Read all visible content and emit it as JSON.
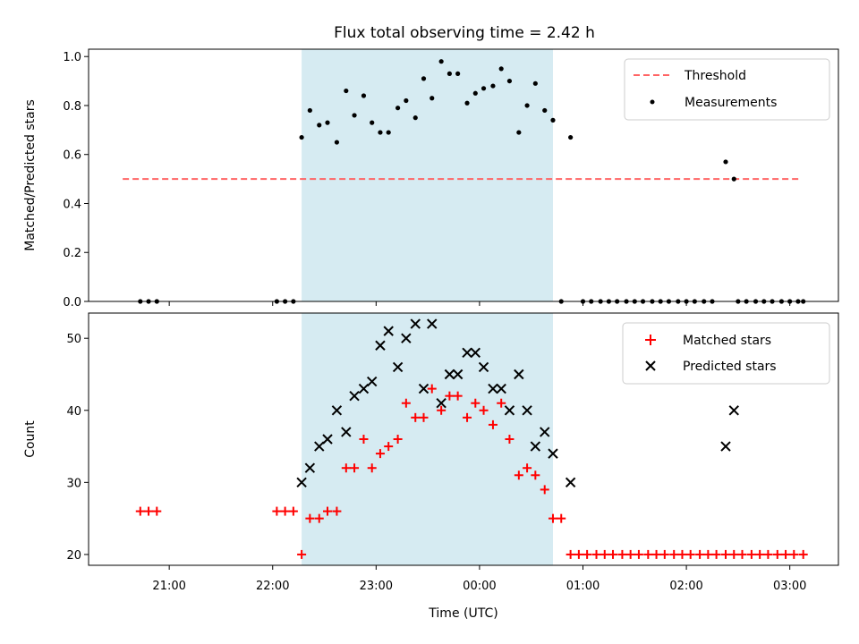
{
  "chart_data": {
    "type": "scatter",
    "title": "Flux total observing time = 2.42 h",
    "xlabel": "Time (UTC)",
    "x_ticks": [
      "21:00",
      "22:00",
      "23:00",
      "00:00",
      "01:00",
      "02:00",
      "03:00"
    ],
    "x_tick_hours": [
      21,
      22,
      23,
      24,
      25,
      26,
      27
    ],
    "xlim_hours": [
      20.22,
      27.47
    ],
    "observing_window_hours": [
      22.28,
      24.71
    ],
    "colors": {
      "window": "#add8e6",
      "threshold": "#ff6464",
      "measurements": "#000000",
      "matched": "#ff0000",
      "predicted": "#000000"
    },
    "panels": [
      {
        "ylabel": "Matched/Predicted stars",
        "ylim": [
          0,
          1.03
        ],
        "y_ticks": [
          "0.0",
          "0.2",
          "0.4",
          "0.6",
          "0.8",
          "1.0"
        ],
        "y_tick_values": [
          0,
          0.2,
          0.4,
          0.6,
          0.8,
          1.0
        ],
        "legend": [
          "Threshold",
          "Measurements"
        ],
        "threshold": {
          "name": "Threshold",
          "y": 0.5,
          "x": [
            20.55,
            27.1
          ]
        },
        "series": [
          {
            "name": "Measurements",
            "marker": "dot",
            "x": [
              20.72,
              20.8,
              20.88,
              22.04,
              22.12,
              22.2,
              22.28,
              22.36,
              22.45,
              22.53,
              22.62,
              22.71,
              22.79,
              22.88,
              22.96,
              23.04,
              23.12,
              23.21,
              23.29,
              23.38,
              23.46,
              23.54,
              23.63,
              23.71,
              23.79,
              23.88,
              23.96,
              24.04,
              24.13,
              24.21,
              24.29,
              24.38,
              24.46,
              24.54,
              24.63,
              24.71,
              24.79,
              24.88,
              25.0,
              25.08,
              25.17,
              25.25,
              25.33,
              25.42,
              25.5,
              25.58,
              25.67,
              25.75,
              25.83,
              25.92,
              26.0,
              26.08,
              26.17,
              26.25,
              26.38,
              26.46,
              26.5,
              26.58,
              26.67,
              26.75,
              26.83,
              26.92,
              27.0,
              27.08,
              27.13
            ],
            "y": [
              0,
              0,
              0,
              0,
              0,
              0,
              0.67,
              0.78,
              0.72,
              0.73,
              0.65,
              0.86,
              0.76,
              0.84,
              0.73,
              0.69,
              0.69,
              0.79,
              0.82,
              0.75,
              0.91,
              0.83,
              0.98,
              0.93,
              0.93,
              0.81,
              0.85,
              0.87,
              0.88,
              0.95,
              0.9,
              0.69,
              0.8,
              0.89,
              0.78,
              0.74,
              0,
              0.67,
              0,
              0,
              0,
              0,
              0,
              0,
              0,
              0,
              0,
              0,
              0,
              0,
              0,
              0,
              0,
              0,
              0.57,
              0.5,
              0,
              0,
              0,
              0,
              0,
              0,
              0,
              0,
              0
            ]
          }
        ]
      },
      {
        "ylabel": "Count",
        "ylim": [
          18.5,
          53.5
        ],
        "y_ticks": [
          "20",
          "30",
          "40",
          "50"
        ],
        "y_tick_values": [
          20,
          30,
          40,
          50
        ],
        "legend": [
          "Matched stars",
          "Predicted stars"
        ],
        "series": [
          {
            "name": "Matched stars",
            "marker": "plus",
            "x": [
              20.72,
              20.8,
              20.88,
              22.04,
              22.12,
              22.2,
              22.28,
              22.36,
              22.45,
              22.53,
              22.62,
              22.71,
              22.79,
              22.88,
              22.96,
              23.04,
              23.12,
              23.21,
              23.29,
              23.38,
              23.46,
              23.54,
              23.63,
              23.71,
              23.79,
              23.88,
              23.96,
              24.04,
              24.13,
              24.21,
              24.29,
              24.38,
              24.46,
              24.54,
              24.63,
              24.71,
              24.79,
              24.88,
              24.96,
              25.04,
              25.13,
              25.21,
              25.29,
              25.38,
              25.46,
              25.54,
              25.63,
              25.71,
              25.79,
              25.88,
              25.96,
              26.04,
              26.13,
              26.21,
              26.29,
              26.38,
              26.46,
              26.54,
              26.63,
              26.71,
              26.79,
              26.88,
              26.96,
              27.04,
              27.13
            ],
            "y": [
              26,
              26,
              26,
              26,
              26,
              26,
              20,
              25,
              25,
              26,
              26,
              32,
              32,
              36,
              32,
              34,
              35,
              36,
              41,
              39,
              39,
              43,
              40,
              42,
              42,
              39,
              41,
              40,
              38,
              41,
              36,
              31,
              32,
              31,
              29,
              25,
              25,
              20,
              20,
              20,
              20,
              20,
              20,
              20,
              20,
              20,
              20,
              20,
              20,
              20,
              20,
              20,
              20,
              20,
              20,
              20,
              20,
              20,
              20,
              20,
              20,
              20,
              20,
              20,
              20
            ]
          },
          {
            "name": "Predicted stars",
            "marker": "x",
            "x": [
              22.28,
              22.36,
              22.45,
              22.53,
              22.62,
              22.71,
              22.79,
              22.88,
              22.96,
              23.04,
              23.12,
              23.21,
              23.29,
              23.38,
              23.46,
              23.54,
              23.63,
              23.71,
              23.79,
              23.88,
              23.96,
              24.04,
              24.13,
              24.21,
              24.29,
              24.38,
              24.46,
              24.54,
              24.63,
              24.71,
              24.88,
              26.38,
              26.46
            ],
            "y": [
              30,
              32,
              35,
              36,
              40,
              37,
              42,
              43,
              44,
              49,
              51,
              46,
              50,
              52,
              43,
              52,
              41,
              45,
              45,
              48,
              48,
              46,
              43,
              43,
              40,
              45,
              40,
              35,
              37,
              34,
              30,
              35,
              40
            ]
          }
        ]
      }
    ]
  }
}
